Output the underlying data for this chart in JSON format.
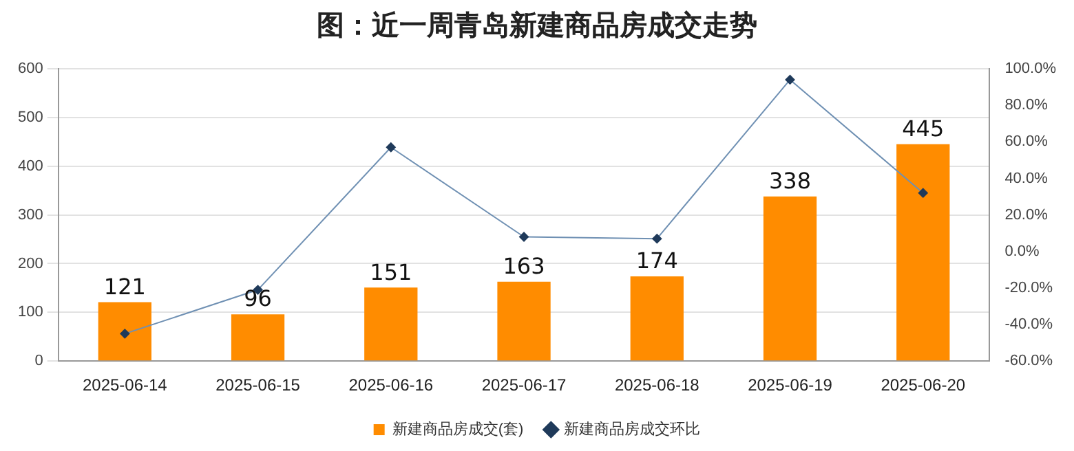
{
  "chart_data": {
    "type": "bar",
    "title": "图：近一周青岛新建商品房成交走势",
    "categories": [
      "2025-06-14",
      "2025-06-15",
      "2025-06-16",
      "2025-06-17",
      "2025-06-18",
      "2025-06-19",
      "2025-06-20"
    ],
    "series": [
      {
        "name": "新建商品房成交(套)",
        "color": "#ff8c00",
        "values": [
          121,
          96,
          151,
          163,
          174,
          338,
          445
        ],
        "value_labels": [
          "121",
          "96",
          "151",
          "163",
          "174",
          "338",
          "445"
        ]
      },
      {
        "name": "新建商品房成交环比",
        "type": "line",
        "axis": "y2",
        "color": "#6f90b3",
        "marker": "diamond",
        "values": [
          -45,
          -21,
          57,
          8,
          7,
          94,
          32
        ]
      }
    ],
    "ylim": [
      0,
      600
    ],
    "yticks": [
      0,
      100,
      200,
      300,
      400,
      500,
      600
    ],
    "y2lim": [
      -60,
      100
    ],
    "y2ticks": [
      {
        "value": -60,
        "label": "-60.0%"
      },
      {
        "value": -40,
        "label": "-40.0%"
      },
      {
        "value": -20,
        "label": "-20.0%"
      },
      {
        "value": 0,
        "label": "0.0%"
      },
      {
        "value": 20,
        "label": "20.0%"
      },
      {
        "value": 40,
        "label": "40.0%"
      },
      {
        "value": 60,
        "label": "60.0%"
      },
      {
        "value": 80,
        "label": "80.0%"
      },
      {
        "value": 100,
        "label": "100.0%"
      }
    ],
    "grid": "y",
    "legend": "bottom"
  }
}
